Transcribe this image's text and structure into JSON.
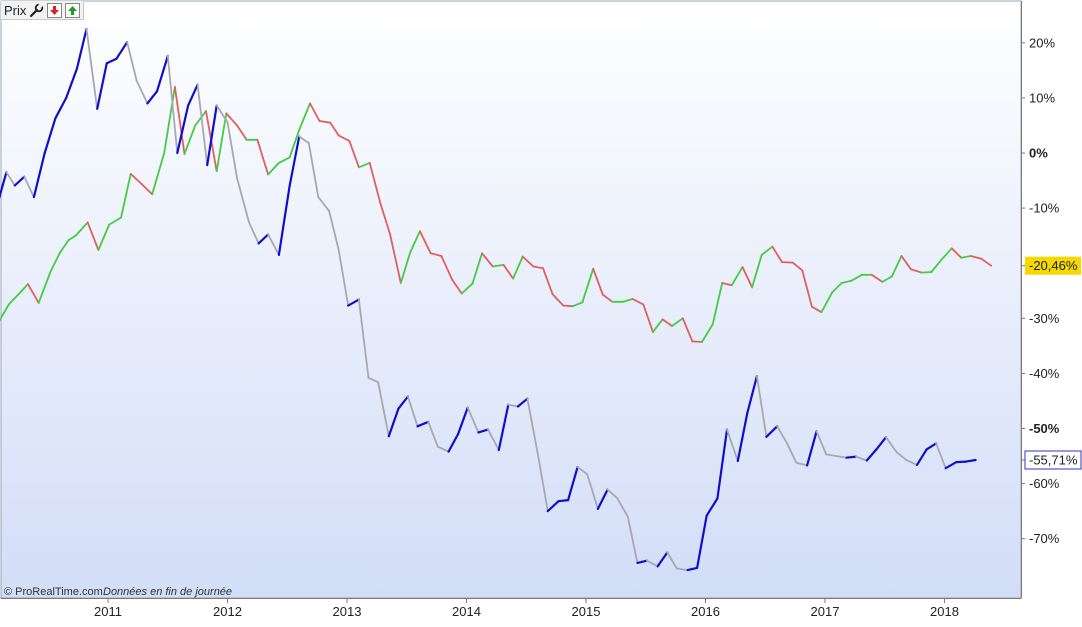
{
  "toolbar": {
    "title": "Prix",
    "icons": [
      "wrench-icon",
      "red-down-arrow-icon",
      "green-up-arrow-icon"
    ]
  },
  "copyright": {
    "brand": "© ProRealTime.com",
    "note": "Données en fin de journée"
  },
  "colors": {
    "background_top": "#ffffff",
    "background_bottom": "#d2ddf7",
    "series1_up": "#44cc44",
    "series1_down": "#e06060",
    "series2_up": "#1010cc",
    "series2_down": "#a8a8b0",
    "badge1_bg": "#f5d800",
    "badge2_text": "#3030c0"
  },
  "chart_data": {
    "type": "line",
    "x_tick_labels": [
      "2011",
      "2012",
      "2013",
      "2014",
      "2015",
      "2016",
      "2017",
      "2018"
    ],
    "y_tick_labels": [
      "20%",
      "10%",
      "0%",
      "-10%",
      "-20,46%",
      "-30%",
      "-40%",
      "-50%",
      "-55,71%",
      "-60%",
      "-70%"
    ],
    "yunit": "%",
    "ylim": [
      -80,
      27
    ],
    "grid": false,
    "legend": "none",
    "series": [
      {
        "color_up": "#44cc44",
        "color_down": "#e06060",
        "last_label": "-20,46%",
        "points": [
          [
            2010.0,
            -31.2
          ],
          [
            2010.07,
            -31.2
          ],
          [
            2010.17,
            -27.5
          ],
          [
            2010.27,
            -25.2
          ],
          [
            2010.33,
            -23.8
          ],
          [
            2010.42,
            -27.2
          ],
          [
            2010.52,
            -21.5
          ],
          [
            2010.6,
            -18.0
          ],
          [
            2010.67,
            -15.8
          ],
          [
            2010.73,
            -15.0
          ],
          [
            2010.83,
            -12.6
          ],
          [
            2010.92,
            -17.6
          ],
          [
            2011.01,
            -13.0
          ],
          [
            2011.11,
            -11.7
          ],
          [
            2011.19,
            -3.8
          ],
          [
            2011.28,
            -5.6
          ],
          [
            2011.37,
            -7.5
          ],
          [
            2011.47,
            0.0
          ],
          [
            2011.56,
            12.0
          ],
          [
            2011.64,
            -0.2
          ],
          [
            2011.73,
            5.0
          ],
          [
            2011.82,
            7.6
          ],
          [
            2011.91,
            -3.3
          ],
          [
            2011.99,
            7.2
          ],
          [
            2012.08,
            5.0
          ],
          [
            2012.16,
            2.4
          ],
          [
            2012.25,
            2.4
          ],
          [
            2012.34,
            -3.9
          ],
          [
            2012.43,
            -1.8
          ],
          [
            2012.52,
            -0.8
          ],
          [
            2012.6,
            4.2
          ],
          [
            2012.69,
            9.0
          ],
          [
            2012.77,
            5.8
          ],
          [
            2012.86,
            5.5
          ],
          [
            2012.93,
            3.2
          ],
          [
            2013.02,
            2.2
          ],
          [
            2013.1,
            -2.6
          ],
          [
            2013.19,
            -1.8
          ],
          [
            2013.28,
            -9.2
          ],
          [
            2013.36,
            -14.7
          ],
          [
            2013.45,
            -23.6
          ],
          [
            2013.53,
            -18.0
          ],
          [
            2013.61,
            -14.2
          ],
          [
            2013.7,
            -18.2
          ],
          [
            2013.79,
            -18.7
          ],
          [
            2013.88,
            -23.0
          ],
          [
            2013.96,
            -25.5
          ],
          [
            2014.05,
            -23.7
          ],
          [
            2014.13,
            -18.2
          ],
          [
            2014.22,
            -20.6
          ],
          [
            2014.31,
            -20.3
          ],
          [
            2014.39,
            -22.8
          ],
          [
            2014.47,
            -18.8
          ],
          [
            2014.56,
            -20.6
          ],
          [
            2014.64,
            -20.9
          ],
          [
            2014.72,
            -25.6
          ],
          [
            2014.81,
            -27.7
          ],
          [
            2014.89,
            -27.8
          ],
          [
            2014.97,
            -27.1
          ],
          [
            2015.06,
            -21.0
          ],
          [
            2015.14,
            -25.7
          ],
          [
            2015.22,
            -27.0
          ],
          [
            2015.31,
            -27.0
          ],
          [
            2015.39,
            -26.5
          ],
          [
            2015.48,
            -27.5
          ],
          [
            2015.56,
            -32.5
          ],
          [
            2015.64,
            -30.2
          ],
          [
            2015.72,
            -31.4
          ],
          [
            2015.81,
            -30.0
          ],
          [
            2015.89,
            -34.2
          ],
          [
            2015.97,
            -34.3
          ],
          [
            2016.06,
            -31.1
          ],
          [
            2016.14,
            -23.6
          ],
          [
            2016.22,
            -24.0
          ],
          [
            2016.31,
            -20.7
          ],
          [
            2016.39,
            -24.4
          ],
          [
            2016.47,
            -18.5
          ],
          [
            2016.56,
            -17.0
          ],
          [
            2016.64,
            -19.8
          ],
          [
            2016.73,
            -19.9
          ],
          [
            2016.81,
            -21.3
          ],
          [
            2016.89,
            -27.9
          ],
          [
            2016.97,
            -28.9
          ],
          [
            2017.06,
            -25.3
          ],
          [
            2017.14,
            -23.6
          ],
          [
            2017.22,
            -23.2
          ],
          [
            2017.31,
            -22.1
          ],
          [
            2017.39,
            -22.1
          ],
          [
            2017.48,
            -23.4
          ],
          [
            2017.56,
            -22.4
          ],
          [
            2017.64,
            -18.7
          ],
          [
            2017.72,
            -21.1
          ],
          [
            2017.81,
            -21.7
          ],
          [
            2017.89,
            -21.6
          ],
          [
            2017.97,
            -19.5
          ],
          [
            2018.06,
            -17.3
          ],
          [
            2018.14,
            -19.0
          ],
          [
            2018.22,
            -18.7
          ],
          [
            2018.31,
            -19.2
          ],
          [
            2018.39,
            -20.46
          ]
        ]
      },
      {
        "color_up": "#1010cc",
        "color_down": "#a8a8b0",
        "last_label": "-55,71%",
        "points": [
          [
            2010.0,
            -12.2
          ],
          [
            2010.05,
            -11.1
          ],
          [
            2010.15,
            -3.5
          ],
          [
            2010.22,
            -5.9
          ],
          [
            2010.3,
            -4.3
          ],
          [
            2010.38,
            -8.0
          ],
          [
            2010.47,
            0.0
          ],
          [
            2010.56,
            6.3
          ],
          [
            2010.65,
            10.0
          ],
          [
            2010.74,
            15.3
          ],
          [
            2010.82,
            22.5
          ],
          [
            2010.91,
            8.0
          ],
          [
            2010.99,
            16.3
          ],
          [
            2011.07,
            17.1
          ],
          [
            2011.16,
            20.1
          ],
          [
            2011.24,
            13.1
          ],
          [
            2011.33,
            9.0
          ],
          [
            2011.41,
            11.2
          ],
          [
            2011.5,
            17.6
          ],
          [
            2011.58,
            0.0
          ],
          [
            2011.67,
            8.6
          ],
          [
            2011.75,
            12.4
          ],
          [
            2011.83,
            -2.2
          ],
          [
            2011.91,
            8.6
          ],
          [
            2012.0,
            5.6
          ],
          [
            2012.08,
            -4.6
          ],
          [
            2012.18,
            -12.6
          ],
          [
            2012.26,
            -16.4
          ],
          [
            2012.34,
            -14.8
          ],
          [
            2012.43,
            -18.5
          ],
          [
            2012.52,
            -6.0
          ],
          [
            2012.6,
            3.0
          ],
          [
            2012.68,
            1.8
          ],
          [
            2012.76,
            -8.0
          ],
          [
            2012.85,
            -10.5
          ],
          [
            2012.93,
            -17.5
          ],
          [
            2013.01,
            -27.7
          ],
          [
            2013.1,
            -26.6
          ],
          [
            2013.18,
            -40.8
          ],
          [
            2013.26,
            -41.6
          ],
          [
            2013.35,
            -51.4
          ],
          [
            2013.43,
            -46.4
          ],
          [
            2013.51,
            -44.2
          ],
          [
            2013.59,
            -49.6
          ],
          [
            2013.68,
            -48.8
          ],
          [
            2013.76,
            -53.3
          ],
          [
            2013.85,
            -54.2
          ],
          [
            2013.93,
            -51.0
          ],
          [
            2014.01,
            -46.2
          ],
          [
            2014.1,
            -50.7
          ],
          [
            2014.18,
            -50.2
          ],
          [
            2014.27,
            -53.9
          ],
          [
            2014.35,
            -45.7
          ],
          [
            2014.43,
            -46.0
          ],
          [
            2014.51,
            -44.6
          ],
          [
            2014.6,
            -55.0
          ],
          [
            2014.68,
            -65.0
          ],
          [
            2014.77,
            -63.2
          ],
          [
            2014.85,
            -63.0
          ],
          [
            2014.93,
            -57.0
          ],
          [
            2015.01,
            -58.3
          ],
          [
            2015.1,
            -64.6
          ],
          [
            2015.18,
            -61.1
          ],
          [
            2015.26,
            -62.6
          ],
          [
            2015.35,
            -66.0
          ],
          [
            2015.43,
            -74.4
          ],
          [
            2015.51,
            -74.0
          ],
          [
            2015.6,
            -75.0
          ],
          [
            2015.68,
            -72.5
          ],
          [
            2015.76,
            -75.4
          ],
          [
            2015.85,
            -75.7
          ],
          [
            2015.93,
            -75.3
          ],
          [
            2016.01,
            -65.8
          ],
          [
            2016.1,
            -62.7
          ],
          [
            2016.18,
            -50.2
          ],
          [
            2016.27,
            -55.9
          ],
          [
            2016.35,
            -47.2
          ],
          [
            2016.43,
            -40.5
          ],
          [
            2016.51,
            -51.5
          ],
          [
            2016.6,
            -49.6
          ],
          [
            2016.68,
            -52.6
          ],
          [
            2016.76,
            -56.2
          ],
          [
            2016.85,
            -56.7
          ],
          [
            2016.93,
            -50.5
          ],
          [
            2017.01,
            -54.7
          ],
          [
            2017.1,
            -55.0
          ],
          [
            2017.18,
            -55.3
          ],
          [
            2017.26,
            -55.1
          ],
          [
            2017.35,
            -55.8
          ],
          [
            2017.43,
            -53.8
          ],
          [
            2017.51,
            -51.6
          ],
          [
            2017.6,
            -54.3
          ],
          [
            2017.68,
            -55.7
          ],
          [
            2017.77,
            -56.6
          ],
          [
            2017.85,
            -53.8
          ],
          [
            2017.93,
            -52.7
          ],
          [
            2018.01,
            -57.2
          ],
          [
            2018.1,
            -56.1
          ],
          [
            2018.18,
            -56.0
          ],
          [
            2018.26,
            -55.71
          ]
        ]
      }
    ]
  }
}
